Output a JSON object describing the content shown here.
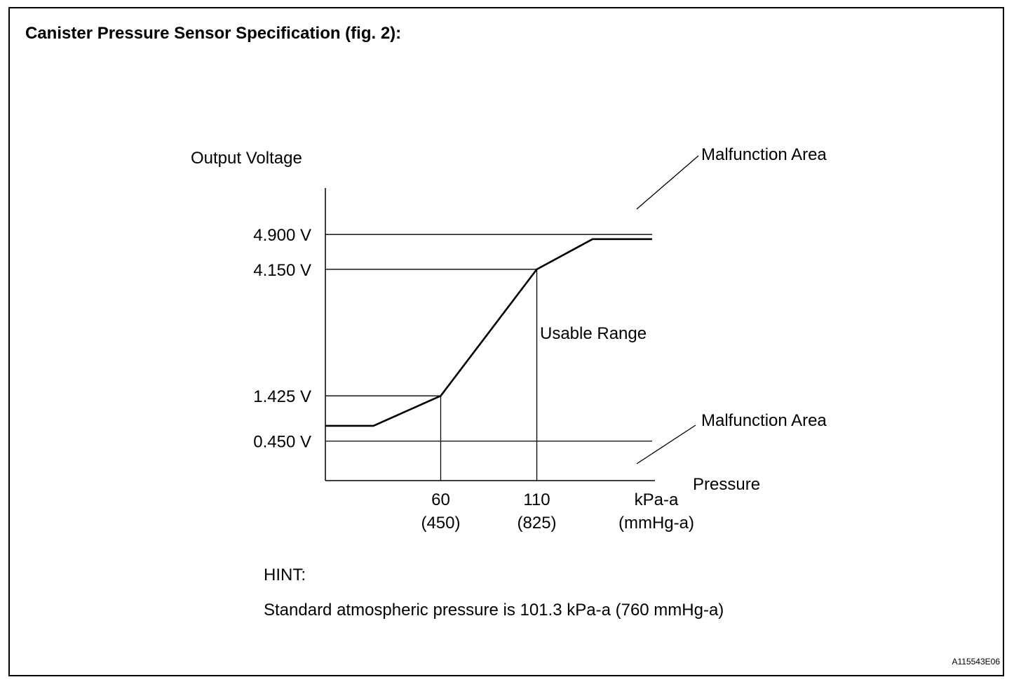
{
  "title": "Canister Pressure Sensor Specification (fig. 2):",
  "hint_label": "HINT:",
  "hint_text": "Standard atmospheric pressure is 101.3 kPa-a (760 mmHg-a)",
  "figure_code": "A115543E06",
  "chart_data": {
    "type": "line",
    "ylabel": "Output Voltage",
    "xlabel": "Pressure",
    "x_unit_primary": "kPa-a",
    "x_unit_secondary": "(mmHg-a)",
    "y_ticks": [
      {
        "value": 4.9,
        "label": "4.900 V"
      },
      {
        "value": 4.15,
        "label": "4.150 V"
      },
      {
        "value": 1.425,
        "label": "1.425 V"
      },
      {
        "value": 0.45,
        "label": "0.450 V"
      }
    ],
    "x_ticks": [
      {
        "value": 60,
        "label": "60",
        "sublabel": "(450)"
      },
      {
        "value": 110,
        "label": "110",
        "sublabel": "(825)"
      }
    ],
    "x_range": [
      0,
      170
    ],
    "y_range": [
      -0.4,
      5.9
    ],
    "curve": [
      {
        "x": 0,
        "y": 0.78
      },
      {
        "x": 25,
        "y": 0.78
      },
      {
        "x": 60,
        "y": 1.425
      },
      {
        "x": 110,
        "y": 4.15
      },
      {
        "x": 139,
        "y": 4.8
      },
      {
        "x": 170,
        "y": 4.8
      }
    ],
    "annotations": {
      "upper_area": "Malfunction Area",
      "lower_area": "Malfunction Area",
      "middle_area": "Usable Range"
    }
  }
}
